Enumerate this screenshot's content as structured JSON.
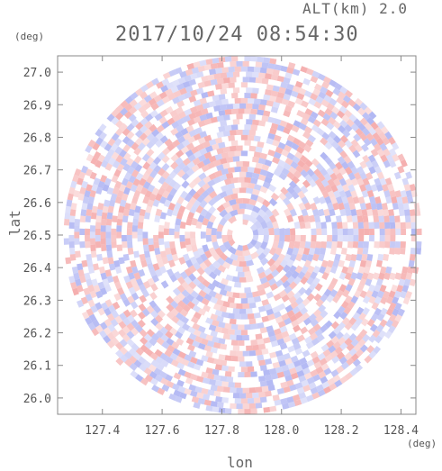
{
  "header": {
    "altitude_label": "ALT(km) 2.0",
    "datetime": "2017/10/24 08:54:30",
    "y_unit": "(deg)",
    "x_unit": "(deg)"
  },
  "chart_data": {
    "type": "heatmap",
    "title": "2017/10/24 08:54:30",
    "subtitle": "ALT(km) 2.0",
    "xlabel": "lon",
    "ylabel": "lat",
    "xlim": [
      127.25,
      128.45
    ],
    "ylim": [
      25.95,
      27.05
    ],
    "x_ticks": [
      "127.4",
      "127.6",
      "127.8",
      "128.0",
      "128.2",
      "128.4"
    ],
    "y_ticks": [
      "26.0",
      "26.1",
      "26.2",
      "26.3",
      "26.4",
      "26.5",
      "26.6",
      "26.7",
      "26.8",
      "26.9",
      "27.0"
    ],
    "domain_shape": "circle",
    "center": {
      "lon": 127.87,
      "lat": 26.5
    },
    "radius_lon": 0.6,
    "colors": {
      "positive": "#f4a6a6",
      "negative": "#aab0f2",
      "neutral": "#ffffff",
      "axis": "#888888"
    },
    "grid": false,
    "legend": "none"
  }
}
